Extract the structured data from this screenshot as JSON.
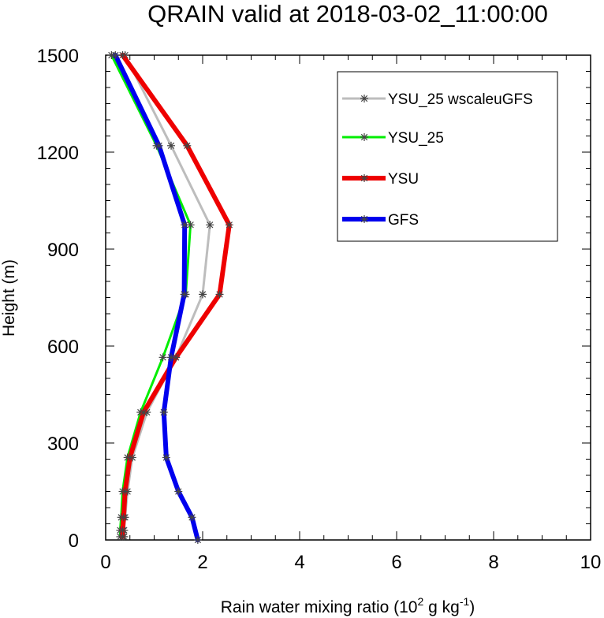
{
  "chart_data": {
    "type": "line",
    "title": "QRAIN valid at 2018-03-02_11:00:00",
    "xlabel": "Rain water mixing ratio (10",
    "xlabel_sup1": "2",
    "xlabel_mid": " g kg",
    "xlabel_sup2": "-1",
    "xlabel_end": ")",
    "ylabel": "Height (m)",
    "xlim": [
      0,
      10
    ],
    "ylim": [
      0,
      1500
    ],
    "xticks": [
      "0",
      "2",
      "4",
      "6",
      "8",
      "10"
    ],
    "yticks": [
      "0",
      "300",
      "600",
      "900",
      "1200",
      "1500"
    ],
    "legend_position": "top-right",
    "series": [
      {
        "name": "YSU_25 wscaleuGFS",
        "color": "#bdbdbd",
        "width": 3,
        "points": [
          [
            0.38,
            10
          ],
          [
            0.38,
            30
          ],
          [
            0.4,
            70
          ],
          [
            0.45,
            150
          ],
          [
            0.55,
            255
          ],
          [
            0.85,
            395
          ],
          [
            1.45,
            565
          ],
          [
            2.0,
            760
          ],
          [
            2.15,
            975
          ],
          [
            1.35,
            1220
          ],
          [
            0.4,
            1500
          ]
        ]
      },
      {
        "name": "YSU_25",
        "color": "#00ee00",
        "width": 3,
        "points": [
          [
            0.3,
            10
          ],
          [
            0.3,
            30
          ],
          [
            0.32,
            70
          ],
          [
            0.35,
            150
          ],
          [
            0.45,
            255
          ],
          [
            0.72,
            395
          ],
          [
            1.18,
            565
          ],
          [
            1.65,
            760
          ],
          [
            1.75,
            975
          ],
          [
            1.05,
            1220
          ],
          [
            0.12,
            1500
          ]
        ]
      },
      {
        "name": "YSU",
        "color": "#ee0000",
        "width": 6,
        "points": [
          [
            0.35,
            10
          ],
          [
            0.35,
            30
          ],
          [
            0.37,
            70
          ],
          [
            0.4,
            150
          ],
          [
            0.5,
            255
          ],
          [
            0.78,
            395
          ],
          [
            1.45,
            565
          ],
          [
            2.35,
            760
          ],
          [
            2.55,
            975
          ],
          [
            1.68,
            1220
          ],
          [
            0.35,
            1500
          ]
        ]
      },
      {
        "name": "GFS",
        "color": "#0000ee",
        "width": 6,
        "points": [
          [
            1.9,
            0
          ],
          [
            1.78,
            70
          ],
          [
            1.5,
            150
          ],
          [
            1.25,
            255
          ],
          [
            1.2,
            395
          ],
          [
            1.35,
            565
          ],
          [
            1.62,
            760
          ],
          [
            1.63,
            975
          ],
          [
            1.1,
            1220
          ],
          [
            0.2,
            1500
          ]
        ]
      }
    ]
  }
}
